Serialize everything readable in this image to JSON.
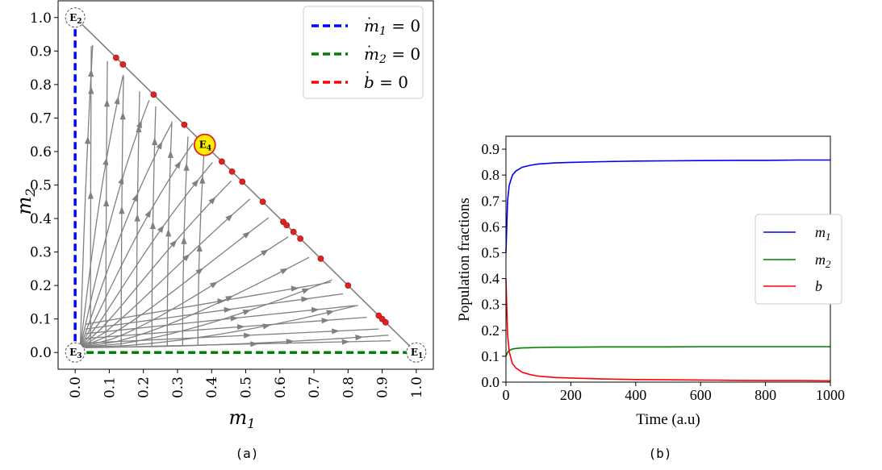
{
  "chart_data": [
    {
      "type": "line",
      "panel": "(a)",
      "xlabel": "m1",
      "ylabel": "m2",
      "xlim": [
        -0.05,
        1.05
      ],
      "ylim": [
        -0.05,
        1.05
      ],
      "x_ticks": [
        "0.0",
        "0.1",
        "0.2",
        "0.3",
        "0.4",
        "0.5",
        "0.6",
        "0.7",
        "0.8",
        "0.9",
        "1.0"
      ],
      "y_ticks": [
        "0.0",
        "0.1",
        "0.2",
        "0.3",
        "0.4",
        "0.5",
        "0.6",
        "0.7",
        "0.8",
        "0.9",
        "1.0"
      ],
      "legend_position": "top-right",
      "legend": [
        {
          "label": "ṁ1 = 0",
          "color": "#0000ff"
        },
        {
          "label": "ṁ2 = 0",
          "color": "#008000"
        },
        {
          "label": "ḃ = 0",
          "color": "#ff0000"
        }
      ],
      "nullclines": {
        "m1_dot_zero": {
          "x": [
            0.0,
            0.0
          ],
          "y": [
            0.0,
            1.0
          ]
        },
        "m2_dot_zero": {
          "x": [
            0.0,
            1.0
          ],
          "y": [
            0.0,
            0.0
          ]
        },
        "b_dot_zero_points": [
          {
            "x": 0.12,
            "y": 0.88
          },
          {
            "x": 0.14,
            "y": 0.86
          },
          {
            "x": 0.23,
            "y": 0.77
          },
          {
            "x": 0.32,
            "y": 0.68
          },
          {
            "x": 0.43,
            "y": 0.57
          },
          {
            "x": 0.46,
            "y": 0.54
          },
          {
            "x": 0.49,
            "y": 0.51
          },
          {
            "x": 0.55,
            "y": 0.45
          },
          {
            "x": 0.61,
            "y": 0.39
          },
          {
            "x": 0.62,
            "y": 0.38
          },
          {
            "x": 0.64,
            "y": 0.36
          },
          {
            "x": 0.66,
            "y": 0.34
          },
          {
            "x": 0.72,
            "y": 0.28
          },
          {
            "x": 0.8,
            "y": 0.2
          },
          {
            "x": 0.89,
            "y": 0.11
          },
          {
            "x": 0.9,
            "y": 0.1
          },
          {
            "x": 0.91,
            "y": 0.09
          }
        ]
      },
      "equilibria": [
        {
          "label": "E1",
          "x": 1.0,
          "y": 0.0
        },
        {
          "label": "E2",
          "x": 0.0,
          "y": 1.0
        },
        {
          "label": "E3",
          "x": 0.0,
          "y": 0.0
        },
        {
          "label": "E4",
          "x": 0.38,
          "y": 0.62
        }
      ],
      "streamline_color": "#808080"
    },
    {
      "type": "line",
      "panel": "(b)",
      "xlabel": "Time (a.u)",
      "ylabel": "Population fractions",
      "xlim": [
        0,
        1000
      ],
      "ylim": [
        0,
        0.95
      ],
      "x_ticks": [
        "0",
        "200",
        "400",
        "600",
        "800",
        "1000"
      ],
      "y_ticks": [
        "0.0",
        "0.1",
        "0.2",
        "0.3",
        "0.4",
        "0.5",
        "0.6",
        "0.7",
        "0.8",
        "0.9"
      ],
      "legend_position": "center-right",
      "x": [
        0,
        5,
        10,
        20,
        30,
        50,
        75,
        100,
        150,
        200,
        300,
        400,
        500,
        600,
        700,
        800,
        900,
        1000
      ],
      "series": [
        {
          "name": "m1",
          "color": "#0000ff",
          "values": [
            0.5,
            0.7,
            0.76,
            0.8,
            0.815,
            0.83,
            0.838,
            0.843,
            0.847,
            0.849,
            0.852,
            0.854,
            0.855,
            0.856,
            0.857,
            0.857,
            0.858,
            0.858
          ]
        },
        {
          "name": "m2",
          "color": "#008000",
          "values": [
            0.1,
            0.115,
            0.122,
            0.128,
            0.13,
            0.132,
            0.133,
            0.134,
            0.135,
            0.135,
            0.136,
            0.136,
            0.136,
            0.137,
            0.137,
            0.137,
            0.137,
            0.137
          ]
        },
        {
          "name": "b",
          "color": "#ff0000",
          "values": [
            0.4,
            0.185,
            0.118,
            0.072,
            0.055,
            0.038,
            0.029,
            0.023,
            0.018,
            0.016,
            0.012,
            0.01,
            0.009,
            0.008,
            0.007,
            0.006,
            0.006,
            0.005
          ]
        }
      ]
    }
  ]
}
